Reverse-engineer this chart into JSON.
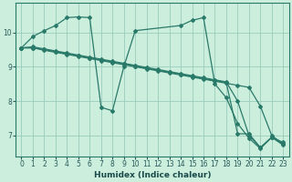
{
  "bg_color": "#cceedd",
  "grid_color": "#99ccbb",
  "line_color": "#2a7a6a",
  "xlabel": "Humidex (Indice chaleur)",
  "xlim": [
    -0.5,
    23.5
  ],
  "ylim": [
    6.4,
    10.85
  ],
  "yticks": [
    7,
    8,
    9,
    10
  ],
  "xticks": [
    0,
    1,
    2,
    3,
    4,
    5,
    6,
    7,
    8,
    9,
    10,
    11,
    12,
    13,
    14,
    15,
    16,
    17,
    18,
    19,
    20,
    21,
    22,
    23
  ],
  "series1_x": [
    0,
    1,
    2,
    3,
    4,
    5,
    6,
    7,
    8,
    9,
    10,
    11,
    12,
    13,
    14,
    15,
    16,
    17,
    18,
    19,
    20,
    21,
    22,
    23
  ],
  "series1_y": [
    9.55,
    9.55,
    9.48,
    9.42,
    9.36,
    9.3,
    9.24,
    9.18,
    9.12,
    9.06,
    9.0,
    8.94,
    8.88,
    8.82,
    8.76,
    8.7,
    8.64,
    8.58,
    8.52,
    8.46,
    8.4,
    7.85,
    7.0,
    6.75
  ],
  "series2_x": [
    0,
    1,
    2,
    3,
    4,
    5,
    6,
    7,
    8,
    9,
    10,
    11,
    12,
    13,
    14,
    15,
    16,
    17,
    18,
    19,
    20,
    21,
    22,
    23
  ],
  "series2_y": [
    9.55,
    9.58,
    9.52,
    9.46,
    9.4,
    9.34,
    9.28,
    9.22,
    9.16,
    9.1,
    9.04,
    8.98,
    8.92,
    8.86,
    8.8,
    8.74,
    8.68,
    8.62,
    8.56,
    8.0,
    7.0,
    6.65,
    6.95,
    6.75
  ],
  "series3_x": [
    0,
    1,
    2,
    3,
    4,
    5,
    6,
    7,
    8,
    9,
    10,
    11,
    12,
    13,
    14,
    15,
    16,
    17,
    18,
    19,
    20,
    21,
    22,
    23
  ],
  "series3_y": [
    9.55,
    9.55,
    9.5,
    9.44,
    9.38,
    9.32,
    9.26,
    9.2,
    9.14,
    9.08,
    9.02,
    8.96,
    8.9,
    8.84,
    8.78,
    8.72,
    8.66,
    8.6,
    8.54,
    7.05,
    7.05,
    6.65,
    6.95,
    6.8
  ],
  "series4_x": [
    0,
    1,
    2,
    3,
    4,
    5,
    6,
    7,
    8,
    9,
    10,
    14,
    15,
    16,
    17,
    18,
    19,
    20,
    21,
    22,
    23
  ],
  "series4_y": [
    9.55,
    9.88,
    10.05,
    10.2,
    10.43,
    10.45,
    10.43,
    7.82,
    7.72,
    9.0,
    10.05,
    10.2,
    10.35,
    10.43,
    8.5,
    8.1,
    7.35,
    6.92,
    6.62,
    6.95,
    6.72
  ]
}
